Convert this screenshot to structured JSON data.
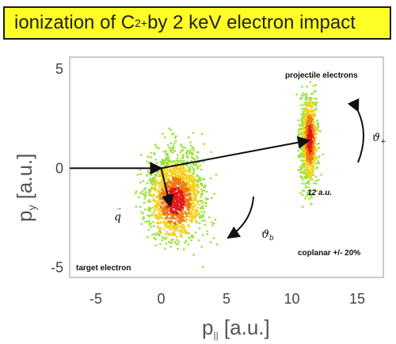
{
  "banner": {
    "prefix": "ionization of C",
    "superscript": "2+",
    "suffix": " by 2 keV electron impact"
  },
  "chart_data": {
    "type": "scatter",
    "title": "ionization of C2+ by 2 keV electron impact",
    "xlabel_main": "p",
    "xlabel_sub": "||",
    "xlabel_unit": " [a.u.]",
    "ylabel_main": "p",
    "ylabel_sub": "y",
    "ylabel_unit": " [a.u.]",
    "xlim": [
      -7,
      17
    ],
    "ylim": [
      -5.5,
      5.6
    ],
    "xticks": [
      -5,
      0,
      5,
      10,
      15
    ],
    "yticks": [
      -5,
      0,
      5
    ],
    "xtick_labels": [
      "-5",
      "0",
      "5",
      "10",
      "15"
    ],
    "ytick_labels": [
      "-5",
      "0",
      "5"
    ],
    "clusters": [
      {
        "name": "target electron",
        "center": [
          1.0,
          -1.3
        ],
        "spread": [
          2.0,
          2.0
        ],
        "core_center": [
          1.0,
          -1.6
        ]
      },
      {
        "name": "projectile electrons",
        "center": [
          11.2,
          1.4
        ],
        "spread": [
          0.6,
          2.1
        ],
        "core_center": [
          11.3,
          1.5
        ]
      }
    ],
    "vectors": [
      {
        "name": "incoming",
        "from": [
          -7,
          0
        ],
        "to": [
          0,
          0
        ]
      },
      {
        "name": "scattered",
        "from": [
          0,
          0
        ],
        "to": [
          11.3,
          1.4
        ]
      },
      {
        "name": "q",
        "from": [
          0,
          0
        ],
        "to": [
          0.7,
          -1.9
        ]
      }
    ],
    "annotations": {
      "projectile_label": "projectile electrons",
      "target_label": "target electron",
      "coplanar_label": "coplanar +/- 20%",
      "momentum_label": "12 a.u.",
      "q_label": "q",
      "theta_plus": "ϑ",
      "theta_plus_sub": "+",
      "theta_b": "ϑ",
      "theta_b_sub": "b"
    },
    "colors": {
      "outer": "#9be23a",
      "mid": "#f2d21a",
      "inner": "#ef7a10",
      "core": "#e01818",
      "banner_bg": "#ffff26"
    }
  }
}
